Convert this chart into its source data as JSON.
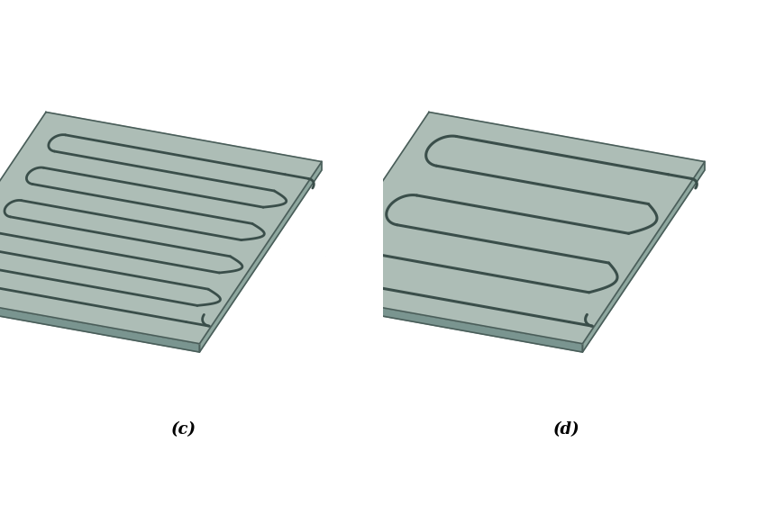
{
  "title_c": "(c)",
  "title_d": "(d)",
  "plate_face_color": "#adbdb6",
  "plate_edge_color": "#4a5e5a",
  "plate_side_color": "#8fa8a0",
  "plate_bottom_color": "#7a9590",
  "channel_color": "#3a4e4a",
  "channel_lw_c": 2.0,
  "channel_lw_d": 2.2,
  "bg_color": "#ffffff",
  "label_fontsize": 13,
  "label_fontweight": "bold",
  "n_channels_c": 5,
  "n_channels_d": 3,
  "fig_width": 8.5,
  "fig_height": 5.72,
  "skx": 0.55,
  "sky": 0.3,
  "plate_lw": 1.2
}
